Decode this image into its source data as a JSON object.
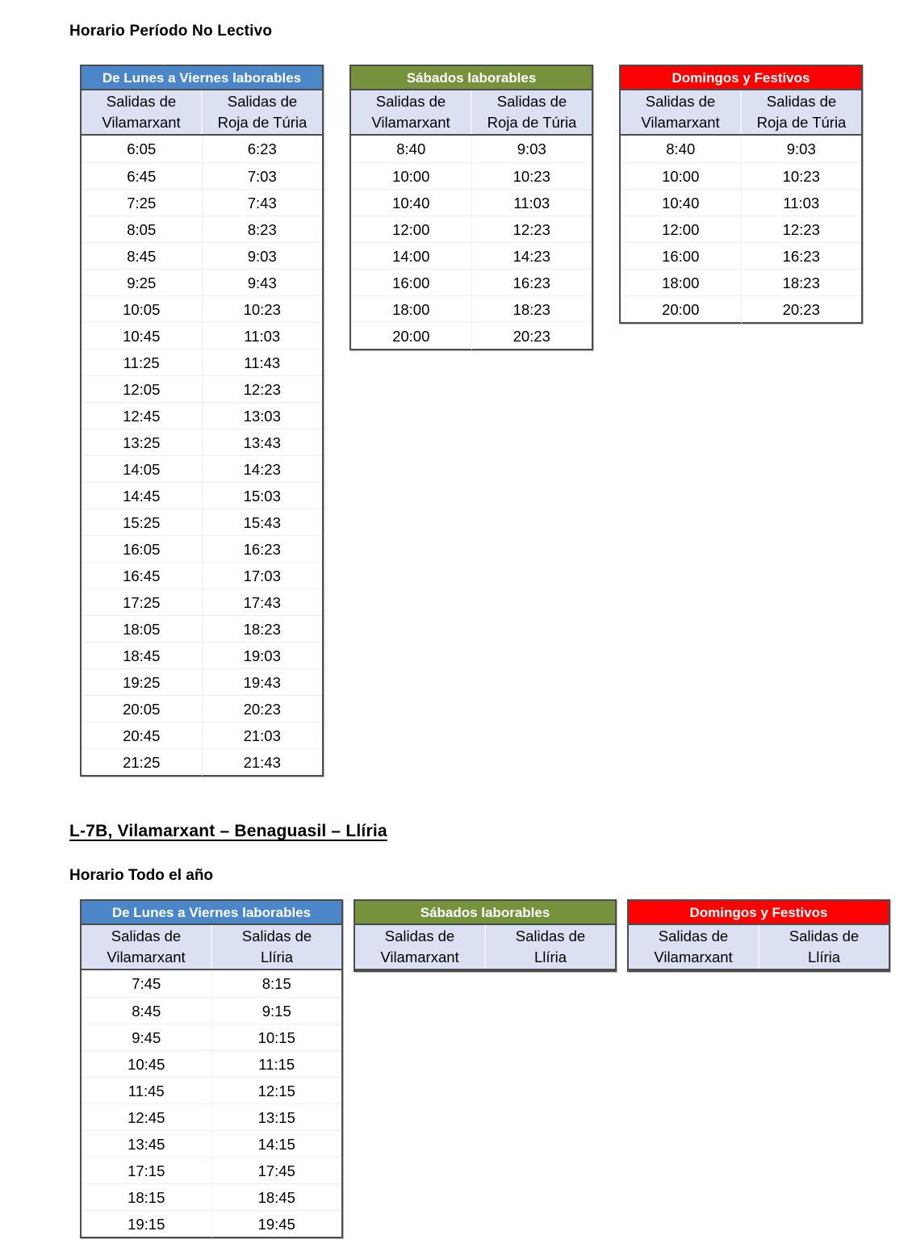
{
  "page": {
    "title_no_lectivo": "Horario Período No Lectivo",
    "line_heading": "L-7B, Vilamarxant – Benaguasil – Llíria",
    "title_todo_el_ano": "Horario Todo el año"
  },
  "colors": {
    "weekday_blue": "#4A86C8",
    "saturday_green": "#76923C",
    "sunday_red": "#FF0000",
    "subheader_bg": "#DBE1F2"
  },
  "sections": [
    {
      "name": "horario_periodo_no_lectivo",
      "tables": [
        {
          "title": "De Lunes a Viernes laborables",
          "header_color": "#4A86C8",
          "columns": [
            "Salidas de\nVilamarxant",
            "Salidas de\nRoja de Túria"
          ],
          "rows": [
            [
              "6:05",
              "6:23"
            ],
            [
              "6:45",
              "7:03"
            ],
            [
              "7:25",
              "7:43"
            ],
            [
              "8:05",
              "8:23"
            ],
            [
              "8:45",
              "9:03"
            ],
            [
              "9:25",
              "9:43"
            ],
            [
              "10:05",
              "10:23"
            ],
            [
              "10:45",
              "11:03"
            ],
            [
              "11:25",
              "11:43"
            ],
            [
              "12:05",
              "12:23"
            ],
            [
              "12:45",
              "13:03"
            ],
            [
              "13:25",
              "13:43"
            ],
            [
              "14:05",
              "14:23"
            ],
            [
              "14:45",
              "15:03"
            ],
            [
              "15:25",
              "15:43"
            ],
            [
              "16:05",
              "16:23"
            ],
            [
              "16:45",
              "17:03"
            ],
            [
              "17:25",
              "17:43"
            ],
            [
              "18:05",
              "18:23"
            ],
            [
              "18:45",
              "19:03"
            ],
            [
              "19:25",
              "19:43"
            ],
            [
              "20:05",
              "20:23"
            ],
            [
              "20:45",
              "21:03"
            ],
            [
              "21:25",
              "21:43"
            ]
          ]
        },
        {
          "title": "Sábados laborables",
          "header_color": "#76923C",
          "columns": [
            "Salidas de\nVilamarxant",
            "Salidas de\nRoja de Túria"
          ],
          "rows": [
            [
              "8:40",
              "9:03"
            ],
            [
              "10:00",
              "10:23"
            ],
            [
              "10:40",
              "11:03"
            ],
            [
              "12:00",
              "12:23"
            ],
            [
              "14:00",
              "14:23"
            ],
            [
              "16:00",
              "16:23"
            ],
            [
              "18:00",
              "18:23"
            ],
            [
              "20:00",
              "20:23"
            ]
          ]
        },
        {
          "title": "Domingos y Festivos",
          "header_color": "#FF0000",
          "columns": [
            "Salidas de\nVilamarxant",
            "Salidas de\nRoja de Túria"
          ],
          "rows": [
            [
              "8:40",
              "9:03"
            ],
            [
              "10:00",
              "10:23"
            ],
            [
              "10:40",
              "11:03"
            ],
            [
              "12:00",
              "12:23"
            ],
            [
              "16:00",
              "16:23"
            ],
            [
              "18:00",
              "18:23"
            ],
            [
              "20:00",
              "20:23"
            ]
          ]
        }
      ]
    },
    {
      "name": "horario_todo_el_ano",
      "tables": [
        {
          "title": "De Lunes a Viernes laborables",
          "header_color": "#4A86C8",
          "columns": [
            "Salidas de\nVilamarxant",
            "Salidas de\nLlíria"
          ],
          "rows": [
            [
              "7:45",
              "8:15"
            ],
            [
              "8:45",
              "9:15"
            ],
            [
              "9:45",
              "10:15"
            ],
            [
              "10:45",
              "11:15"
            ],
            [
              "11:45",
              "12:15"
            ],
            [
              "12:45",
              "13:15"
            ],
            [
              "13:45",
              "14:15"
            ],
            [
              "17:15",
              "17:45"
            ],
            [
              "18:15",
              "18:45"
            ],
            [
              "19:15",
              "19:45"
            ]
          ]
        },
        {
          "title": "Sábados laborables",
          "header_color": "#76923C",
          "columns": [
            "Salidas de\nVilamarxant",
            "Salidas de\nLlíria"
          ],
          "rows": []
        },
        {
          "title": "Domingos y Festivos",
          "header_color": "#FF0000",
          "columns": [
            "Salidas de\nVilamarxant",
            "Salidas de\nLlíria"
          ],
          "rows": []
        }
      ]
    }
  ]
}
